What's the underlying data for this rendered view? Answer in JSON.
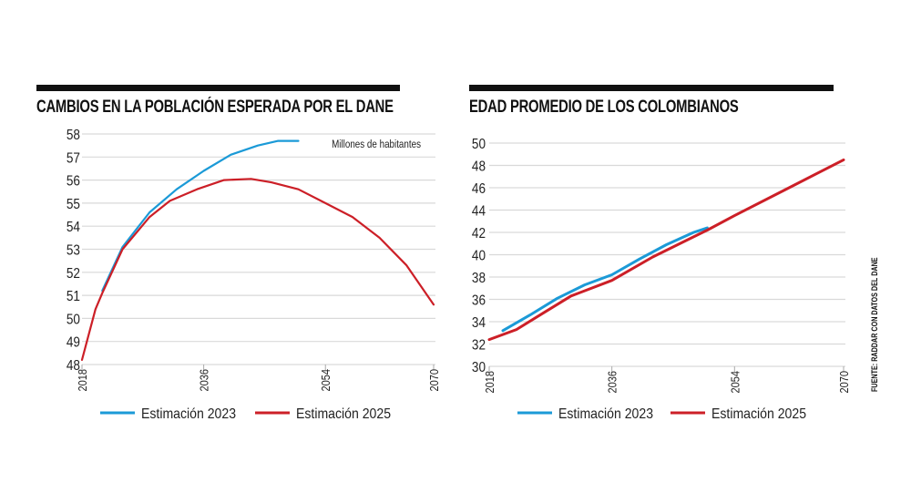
{
  "source": "FUENTE: RADDAR CON DATOS DEL DANE",
  "colors": {
    "Estimación 2023": "#1b9ad7",
    "Estimación 2025": "#cc1f27"
  },
  "chart_data": [
    {
      "type": "line",
      "title": "CAMBIOS EN LA POBLACIÓN ESPERADA POR EL DANE",
      "annotation": "Millones de habitantes",
      "xlim": [
        2018,
        2070
      ],
      "ylim": [
        48,
        58
      ],
      "xticks": [
        2018,
        2036,
        2054,
        2070
      ],
      "yticks": [
        48,
        49,
        50,
        51,
        52,
        53,
        54,
        55,
        56,
        57,
        58
      ],
      "grid": "horizontal",
      "legend": "bottom",
      "series": [
        {
          "name": "Estimación 2023",
          "x": [
            2021,
            2024,
            2028,
            2032,
            2036,
            2040,
            2044,
            2047,
            2050
          ],
          "y": [
            51.2,
            53.1,
            54.6,
            55.6,
            56.4,
            57.1,
            57.5,
            57.7,
            57.7
          ]
        },
        {
          "name": "Estimación 2025",
          "x": [
            2018,
            2020,
            2021,
            2024,
            2028,
            2031,
            2035,
            2039,
            2043,
            2046,
            2050,
            2054,
            2058,
            2062,
            2066,
            2070
          ],
          "y": [
            48.2,
            50.4,
            51.1,
            53.0,
            54.4,
            55.1,
            55.6,
            56.0,
            56.05,
            55.9,
            55.6,
            55.0,
            54.4,
            53.5,
            52.3,
            50.6
          ]
        }
      ]
    },
    {
      "type": "line",
      "title": "EDAD PROMEDIO DE LOS COLOMBIANOS",
      "xlim": [
        2018,
        2070
      ],
      "ylim": [
        30,
        50
      ],
      "xticks": [
        2018,
        2036,
        2054,
        2070
      ],
      "yticks": [
        30,
        32,
        34,
        36,
        38,
        40,
        42,
        44,
        46,
        48,
        50
      ],
      "grid": "horizontal",
      "legend": "bottom",
      "series": [
        {
          "name": "Estimación 2023",
          "x": [
            2020,
            2024,
            2028,
            2032,
            2036,
            2040,
            2044,
            2048,
            2050
          ],
          "y": [
            33.2,
            34.6,
            36.1,
            37.3,
            38.2,
            39.6,
            40.9,
            42.0,
            42.4
          ]
        },
        {
          "name": "Estimación 2025",
          "x": [
            2018,
            2022,
            2026,
            2030,
            2036,
            2042,
            2050,
            2054,
            2062,
            2070
          ],
          "y": [
            32.4,
            33.3,
            34.8,
            36.3,
            37.7,
            39.8,
            42.2,
            43.5,
            46.0,
            48.5
          ]
        }
      ]
    }
  ]
}
